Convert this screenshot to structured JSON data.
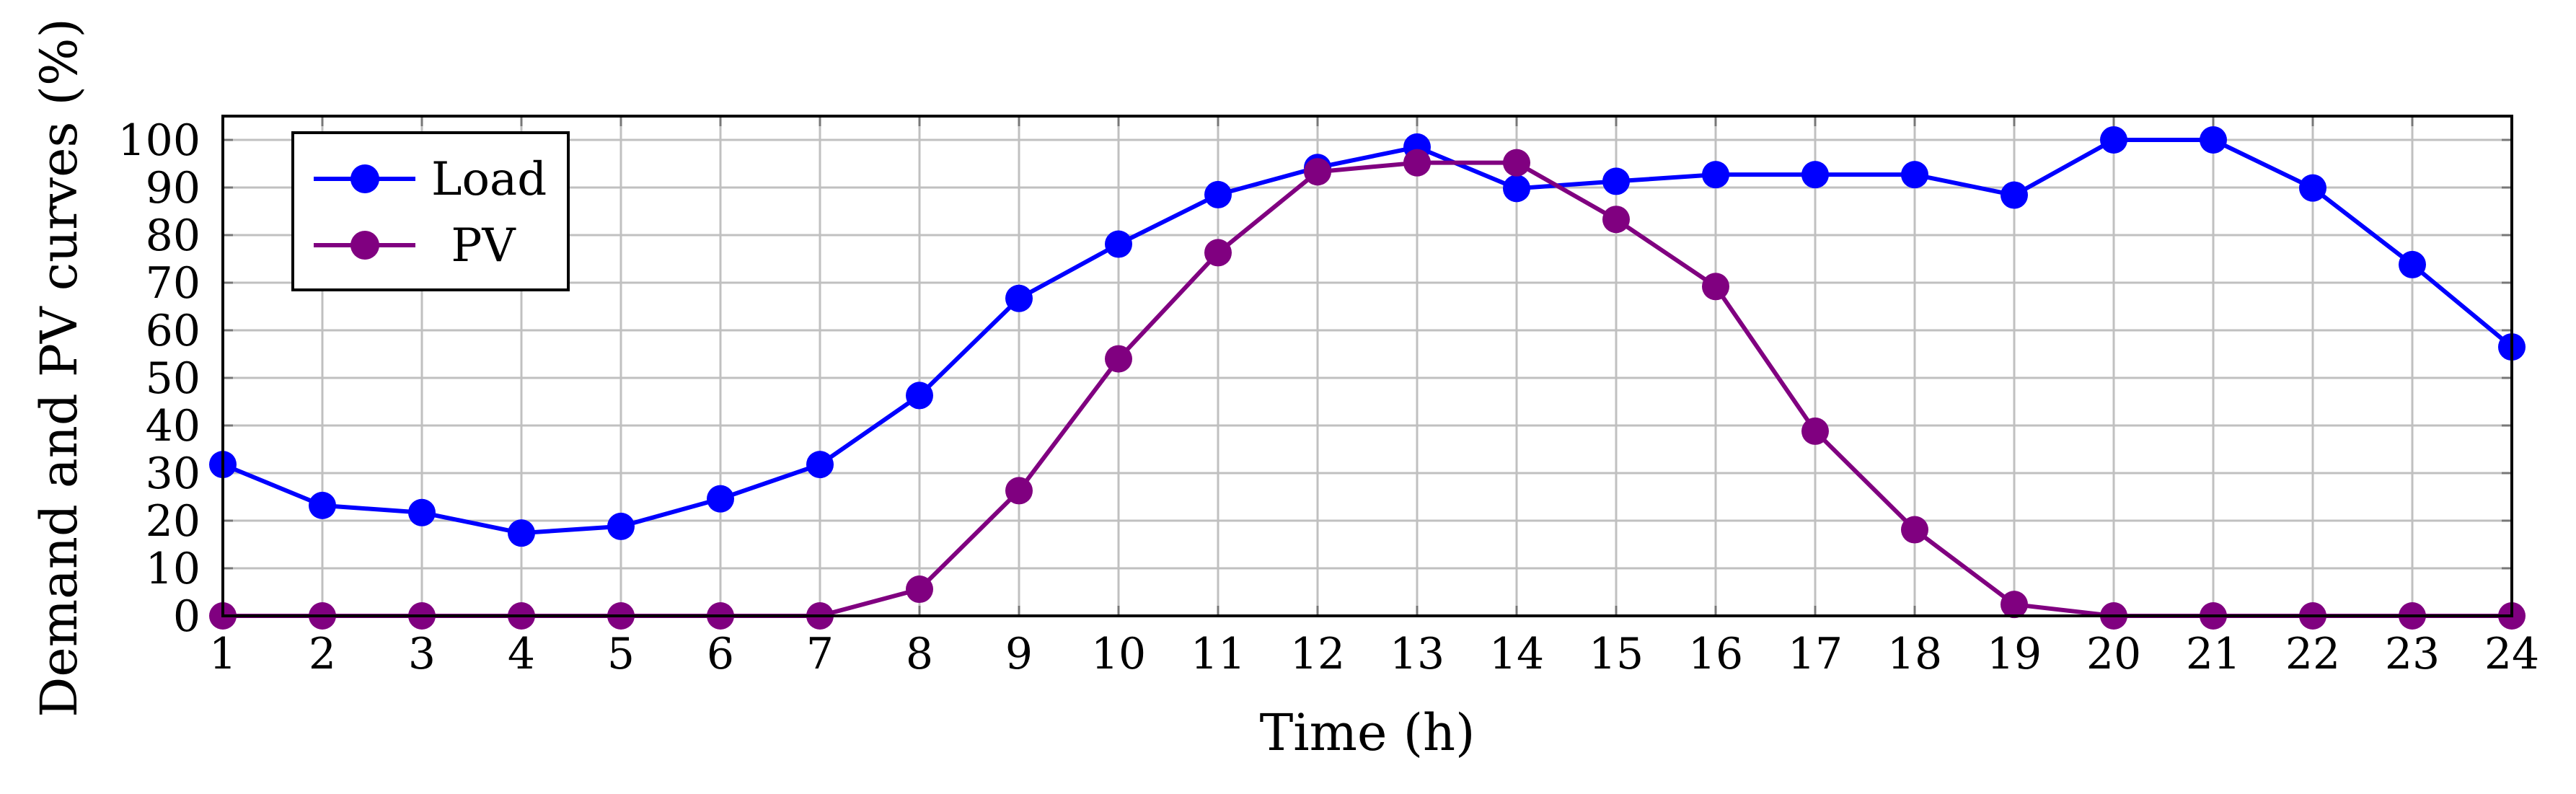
{
  "chart_data": {
    "type": "line",
    "title": "",
    "xlabel": "Time (h)",
    "ylabel": "Demand and PV curves (%)",
    "x": [
      1,
      2,
      3,
      4,
      5,
      6,
      7,
      8,
      9,
      10,
      11,
      12,
      13,
      14,
      15,
      16,
      17,
      18,
      19,
      20,
      21,
      22,
      23,
      24
    ],
    "xticks": [
      "1",
      "2",
      "3",
      "4",
      "5",
      "6",
      "7",
      "8",
      "9",
      "10",
      "11",
      "12",
      "13",
      "14",
      "15",
      "16",
      "17",
      "18",
      "19",
      "20",
      "21",
      "22",
      "23",
      "24"
    ],
    "yticks": [
      "0",
      "10",
      "20",
      "30",
      "40",
      "50",
      "60",
      "70",
      "80",
      "90",
      "100"
    ],
    "xlim": [
      1,
      24
    ],
    "ylim": [
      0,
      105
    ],
    "grid": true,
    "legend_position": "upper left",
    "series": [
      {
        "name": "Load",
        "color": "#0000ff",
        "marker": "circle",
        "values": [
          31.8,
          23.2,
          21.7,
          17.4,
          18.8,
          24.6,
          31.8,
          46.3,
          66.7,
          78.1,
          88.5,
          94.2,
          98.5,
          89.8,
          91.3,
          92.7,
          92.7,
          92.7,
          88.4,
          100,
          100,
          89.9,
          73.8,
          56.5
        ]
      },
      {
        "name": "PV",
        "color": "#800080",
        "marker": "circle",
        "values": [
          0,
          0,
          0,
          0,
          0,
          0,
          0,
          5.6,
          26.3,
          54.0,
          76.3,
          93.3,
          95.2,
          95.2,
          83.3,
          69.2,
          38.8,
          18.1,
          2.4,
          0,
          0,
          0,
          0,
          0
        ]
      }
    ]
  },
  "legend": {
    "items": [
      {
        "label": "Load",
        "color": "#0000ff"
      },
      {
        "label": "PV",
        "color": "#800080"
      }
    ]
  },
  "colors": {
    "grid": "#c0c0c0",
    "axis": "#000000",
    "load": "#0000ff",
    "pv": "#800080"
  }
}
